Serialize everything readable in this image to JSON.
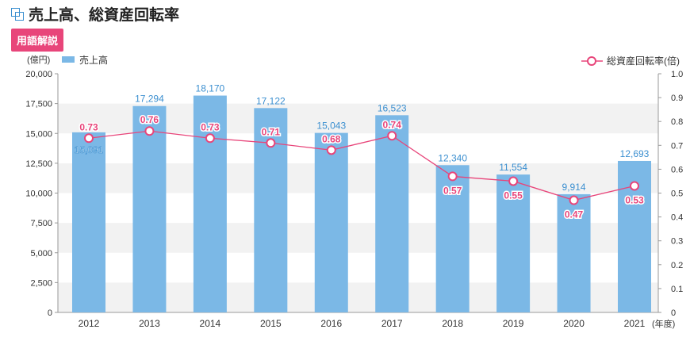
{
  "header": {
    "title": "売上高、総資産回転率",
    "glossary_button": "用語解説"
  },
  "colors": {
    "bar": "#7bb8e6",
    "line": "#e8457a",
    "band": "#f2f2f2"
  },
  "chart_data": {
    "type": "bar+line",
    "categories": [
      "2012",
      "2013",
      "2014",
      "2015",
      "2016",
      "2017",
      "2018",
      "2019",
      "2020",
      "2021"
    ],
    "x_unit": "(年度)",
    "series": [
      {
        "name": "売上高",
        "type": "bar",
        "axis": "left",
        "values": [
          15091,
          17294,
          18170,
          17122,
          15043,
          16523,
          12340,
          11554,
          9914,
          12693
        ],
        "labels": [
          "15,091",
          "17,294",
          "18,170",
          "17,122",
          "15,043",
          "16,523",
          "12,340",
          "11,554",
          "9,914",
          "12,693"
        ]
      },
      {
        "name": "総資産回転率(倍)",
        "type": "line",
        "axis": "right",
        "values": [
          0.73,
          0.76,
          0.73,
          0.71,
          0.68,
          0.74,
          0.57,
          0.55,
          0.47,
          0.53
        ],
        "labels": [
          "0.73",
          "0.76",
          "0.73",
          "0.71",
          "0.68",
          "0.74",
          "0.57",
          "0.55",
          "0.47",
          "0.53"
        ]
      }
    ],
    "left_axis": {
      "unit": "(億円)",
      "ylim": [
        0,
        20000
      ],
      "ticks": [
        "0",
        "2,500",
        "5,000",
        "7,500",
        "10,000",
        "12,500",
        "15,000",
        "17,500",
        "20,000"
      ]
    },
    "right_axis": {
      "ylim": [
        0,
        1.0
      ],
      "ticks": [
        "0",
        "0.1",
        "0.2",
        "0.3",
        "0.4",
        "0.5",
        "0.6",
        "0.7",
        "0.8",
        "0.9",
        "1.0"
      ]
    },
    "legend": {
      "bar": "売上高",
      "line": "総資産回転率(倍)"
    }
  }
}
